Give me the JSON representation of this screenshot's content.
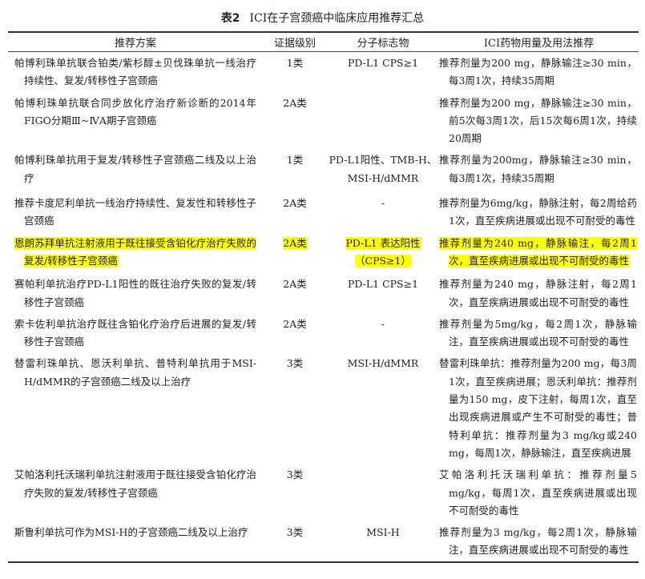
{
  "title": {
    "label": "表2",
    "text": "ICI在子宫颈癌中临床应用推荐汇总"
  },
  "headers": [
    "推荐方案",
    "证据级别",
    "分子标志物",
    "ICI药物用量及用法推荐"
  ],
  "highlight_color": "#ffff00",
  "rows": [
    {
      "scheme": "帕博利珠单抗联合铂类/紫杉醇±贝伐珠单抗一线治疗持续性、复发/转移性子宫颈癌",
      "level": "1类",
      "marker": "PD-L1 CPS≥1",
      "dosage": "推荐剂量为200 mg，静脉输注≥30 min，每3周1次，持续35周期",
      "highlighted": false
    },
    {
      "scheme": "帕博利珠单抗联合同步放化疗治疗新诊断的2014年FIGO分期Ⅲ~ⅣA期子宫颈癌",
      "level": "2A类",
      "marker": "",
      "dosage": "推荐剂量为200 mg，静脉输注≥30 min，前5次每3周1次，后15次每6周1次，持续20周期",
      "highlighted": false
    },
    {
      "scheme": "帕博利珠单抗用于复发/转移性子宫颈癌二线及以上治疗",
      "level": "1类",
      "marker": "PD-L1阳性、TMB-H、MSI-H/dMMR",
      "dosage": "推荐剂量为200mg，静脉输注≥30 min，每3周1次，持续35周期",
      "highlighted": false
    },
    {
      "scheme": "推荐卡度尼利单抗一线治疗持续性、复发性和转移性子宫颈癌",
      "level": "2A类",
      "marker": "-",
      "dosage": "推荐剂量为6mg/kg，静脉注射，每2周给药1次，直至疾病进展或出现不可耐受的毒性",
      "highlighted": false
    },
    {
      "scheme": "恩朗苏拜单抗注射液用于既往接受含铂化疗治疗失败的复发/转移性子宫颈癌",
      "level": "2A类",
      "marker": "PD-L1 表达阳性（CPS≥1）",
      "dosage": "推荐剂量为240 mg，静脉输注，每2周1次，直至疾病进展或出现不可耐受的毒性",
      "highlighted": true
    },
    {
      "scheme": "赛帕利单抗治疗PD-L1阳性的既往治疗失败的复发/转移性子宫颈癌",
      "level": "2A类",
      "marker": "PD-L1 CPS≥1",
      "dosage": "推荐剂量为240 mg，静脉注射，每2周1次，直至疾病进展或出现不可耐受的毒性",
      "highlighted": false
    },
    {
      "scheme": "索卡佐利单抗治疗既往含铂化疗治疗后进展的复发/转移性子宫颈癌",
      "level": "2A类",
      "marker": "-",
      "dosage": "推荐剂量为5mg/kg，每2周1次，静脉输注，直至疾病进展或出现不可耐受的毒性",
      "highlighted": false
    },
    {
      "scheme": "替雷利珠单抗、恩沃利单抗、普特利单抗用于MSI-H/dMMR的子宫颈癌二线及以上治疗",
      "level": "3类",
      "marker": "MSI-H/dMMR",
      "dosage": "替雷利珠单抗：推荐剂量为200 mg，每3周1次，直至疾病进展；恩沃利单抗：推荐剂量为150 mg，皮下注射，每周1次，直至出现疾病进展或产生不可耐受的毒性；普特利单抗：推荐剂量为3 mg/kg或240 mg，每周1次，静脉输注，直至疾病进展",
      "highlighted": false
    },
    {
      "scheme": "艾帕洛利托沃瑞利单抗注射液用于既往接受含铂化疗治疗失败的复发/转移性子宫颈癌",
      "level": "3类",
      "marker": "",
      "dosage": "艾帕洛利托沃瑞利单抗：推荐剂量5 mg/kg，每周1次，直至疾病进展或出现不可耐受的毒性",
      "highlighted": false
    },
    {
      "scheme": "斯鲁利单抗可作为MSI-H的子宫颈癌二线及以上治疗",
      "level": "3类",
      "marker": "MSI-H",
      "dosage": "推荐剂量为3 mg/kg，每2周1次，静脉输注，直至疾病进展或出现不可耐受的毒性",
      "highlighted": false
    }
  ]
}
